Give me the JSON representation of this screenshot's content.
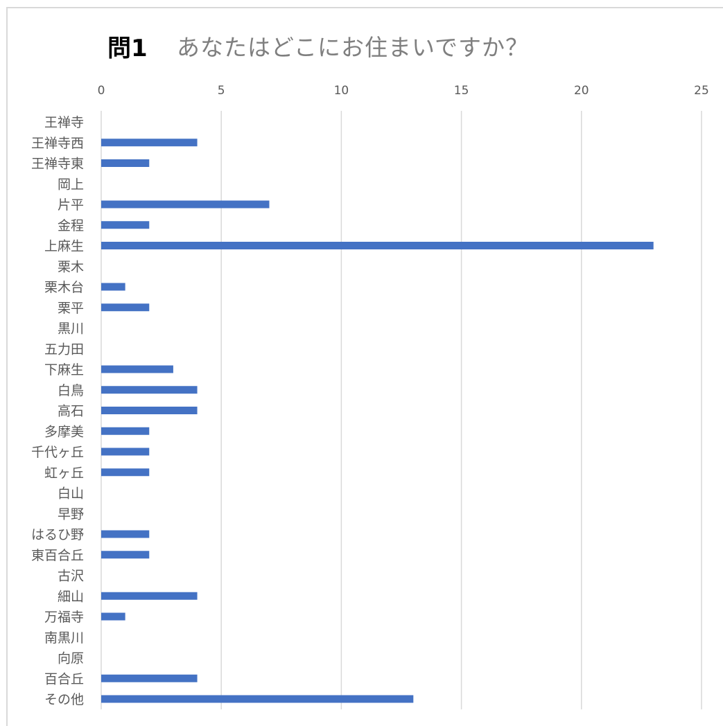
{
  "chart_data": {
    "type": "bar",
    "orientation": "horizontal",
    "title_prefix": "問1",
    "title": "あなたはどこにお住まいですか？",
    "xlim": [
      0,
      25
    ],
    "xticks": [
      0,
      5,
      10,
      15,
      20,
      25
    ],
    "x_axis_position": "top",
    "grid": true,
    "bar_color": "#4472c4",
    "categories": [
      "王禅寺",
      "王禅寺西",
      "王禅寺東",
      "岡上",
      "片平",
      "金程",
      "上麻生",
      "栗木",
      "栗木台",
      "栗平",
      "黒川",
      "五力田",
      "下麻生",
      "白鳥",
      "高石",
      "多摩美",
      "千代ヶ丘",
      "虹ヶ丘",
      "白山",
      "早野",
      "はるひ野",
      "東百合丘",
      "古沢",
      "細山",
      "万福寺",
      "南黒川",
      "向原",
      "百合丘",
      "その他"
    ],
    "values": [
      0,
      4,
      2,
      0,
      7,
      2,
      23,
      0,
      1,
      2,
      0,
      0,
      3,
      4,
      4,
      2,
      2,
      2,
      0,
      0,
      2,
      2,
      0,
      4,
      1,
      0,
      0,
      4,
      13
    ]
  }
}
